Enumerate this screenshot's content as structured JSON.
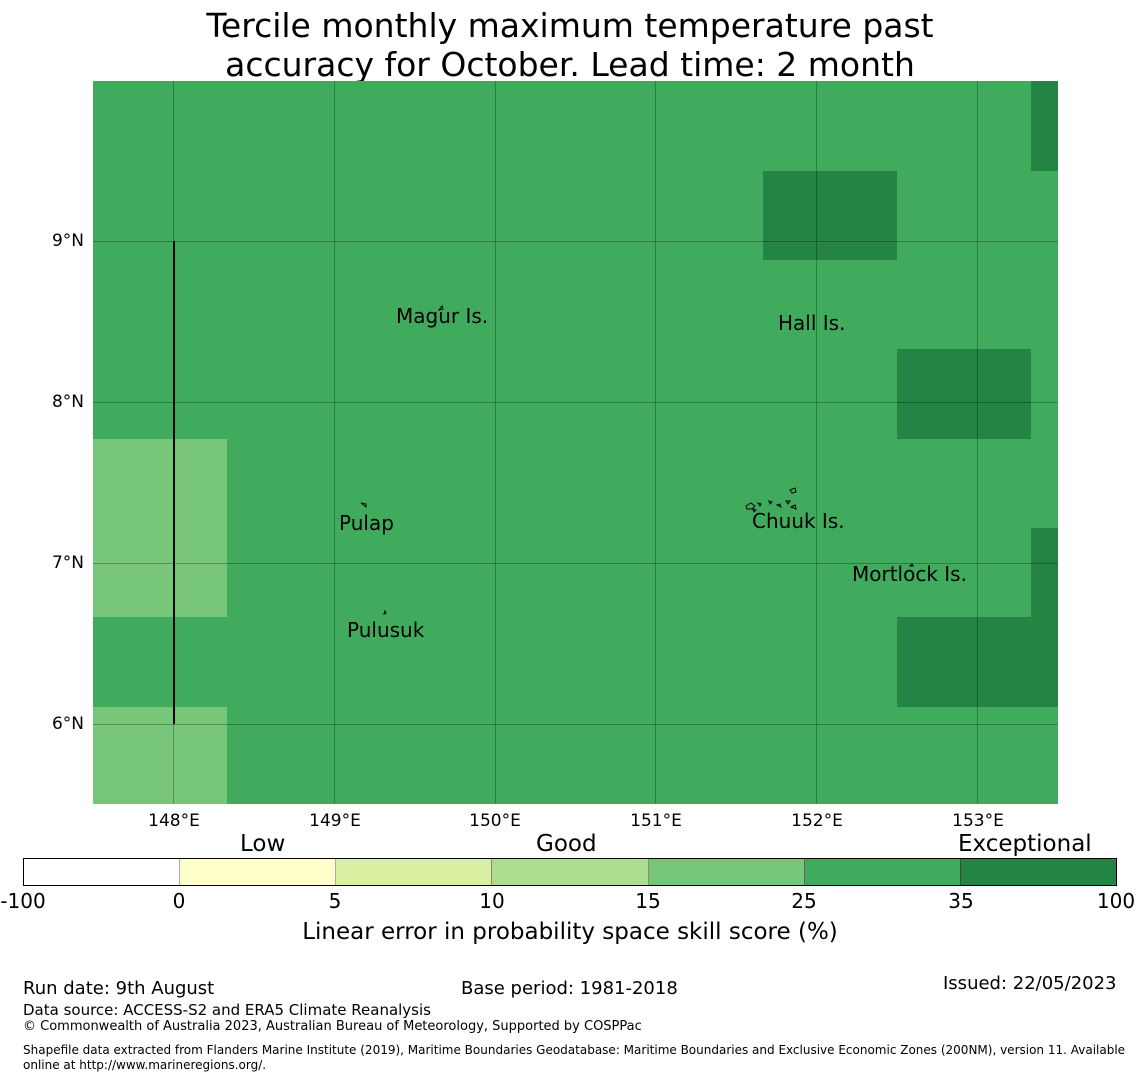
{
  "title_line1": "Tercile monthly maximum temperature past",
  "title_line2": "accuracy for October. Lead time: 2 month",
  "map": {
    "x_ticks": [
      "148°E",
      "149°E",
      "150°E",
      "151°E",
      "152°E",
      "153°E"
    ],
    "y_ticks": [
      "9°N",
      "8°N",
      "7°N",
      "6°N"
    ],
    "places": [
      "Magur Is.",
      "Hall Is.",
      "Pulap",
      "Chuuk Is.",
      "Mortlock Is.",
      "Pulusuk"
    ],
    "colors": {
      "base": "#41ab5d",
      "dark": "#238443",
      "light": "#78c679"
    }
  },
  "legend": {
    "categories": [
      "Low",
      "Good",
      "Exceptional"
    ],
    "ticks": [
      "-100",
      "0",
      "5",
      "10",
      "15",
      "25",
      "35",
      "100"
    ],
    "colors": [
      "#ffffff",
      "#ffffcc",
      "#d9f0a3",
      "#addd8e",
      "#78c679",
      "#41ab5d",
      "#238443"
    ],
    "label": "Linear error in probability space skill score (%)"
  },
  "footer": {
    "run_date": "Run date: 9th August",
    "base_period": "Base period: 1981-2018",
    "issued": "Issued: 22/05/2023",
    "data_source": "Data source: ACCESS-S2 and ERA5 Climate Reanalysis",
    "copyright": "© Commonwealth of Australia 2023, Australian Bureau of Meteorology, Supported by COSPPac",
    "shapefile_line1": "Shapefile data extracted from Flanders Marine Institute (2019), Maritime Boundaries Geodatabase: Maritime Boundaries and Exclusive Economic Zones (200NM), version 11. Available",
    "shapefile_line2": "online at http://www.marineregions.org/."
  }
}
